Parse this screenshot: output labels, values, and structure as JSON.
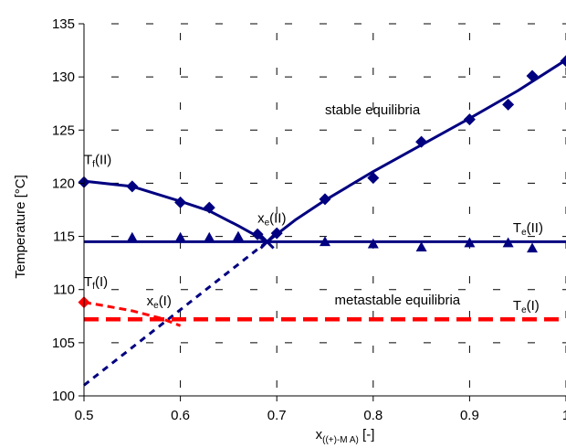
{
  "chart_data": {
    "type": "scatter",
    "title": "",
    "xlabel": {
      "main": "x",
      "sub": "((+)-M A)",
      "unit": " [-]"
    },
    "ylabel": "Temperature [°C]",
    "xlim": [
      0.5,
      1.0
    ],
    "ylim": [
      100,
      135
    ],
    "x_ticks": [
      "0.5",
      "0.6",
      "0.7",
      "0.8",
      "0.9",
      "1"
    ],
    "y_ticks": [
      "100",
      "105",
      "110",
      "115",
      "120",
      "125",
      "130",
      "135"
    ],
    "grid": "dashed",
    "colors": {
      "navy": "#000080",
      "red": "#ff0000"
    },
    "series": [
      {
        "style": "navy-diamond-markers",
        "x": [
          0.5,
          0.55,
          0.6,
          0.63,
          0.68,
          0.7,
          0.75,
          0.8,
          0.85,
          0.9,
          0.94,
          0.965,
          1.0
        ],
        "y": [
          120.1,
          119.7,
          118.2,
          117.7,
          115.2,
          115.3,
          118.5,
          120.5,
          123.9,
          126.0,
          127.4,
          130.1,
          131.5
        ]
      },
      {
        "style": "navy-triangle-markers",
        "x": [
          0.55,
          0.6,
          0.63,
          0.66,
          0.75,
          0.8,
          0.85,
          0.9,
          0.94,
          0.965
        ],
        "y": [
          114.9,
          114.9,
          114.9,
          115.0,
          114.5,
          114.3,
          114.0,
          114.4,
          114.4,
          113.9
        ]
      },
      {
        "style": "navy-x-marker",
        "x": [
          0.69
        ],
        "y": [
          114.5
        ]
      },
      {
        "style": "red-diamond-marker",
        "x": [
          0.5
        ],
        "y": [
          108.8
        ]
      },
      {
        "style": "navy-solid-curve",
        "x": [
          0.5,
          0.55,
          0.6,
          0.63,
          0.66,
          0.69,
          0.72,
          0.75,
          0.8,
          0.85,
          0.9,
          0.95,
          1.0
        ],
        "y": [
          120.2,
          119.7,
          118.3,
          117.4,
          116.0,
          114.5,
          116.6,
          118.4,
          121.1,
          123.6,
          126.1,
          128.7,
          131.6
        ]
      },
      {
        "style": "navy-solid-horizontal",
        "x": [
          0.5,
          1.0
        ],
        "y": [
          114.5,
          114.5
        ]
      },
      {
        "style": "navy-dashed-line",
        "x": [
          0.5,
          0.69
        ],
        "y": [
          101.0,
          114.5
        ]
      },
      {
        "style": "red-dashed-curve",
        "x": [
          0.5,
          0.52,
          0.55,
          0.58,
          0.6
        ],
        "y": [
          108.8,
          108.5,
          108.0,
          107.3,
          106.6
        ]
      },
      {
        "style": "red-dashed-horizontal",
        "x": [
          0.5,
          1.0
        ],
        "y": [
          107.2,
          107.2
        ]
      }
    ],
    "annotations": [
      {
        "id": "stable",
        "text": "stable equilibria",
        "x": 0.75,
        "y": 126.5
      },
      {
        "id": "metastable",
        "text": "metastable equilibria",
        "x": 0.76,
        "y": 108.6
      },
      {
        "id": "tf2",
        "main": "T",
        "sub": "f",
        "rest": "(II)",
        "x": 0.5,
        "y": 121.8
      },
      {
        "id": "tf1",
        "main": "T",
        "sub": "f",
        "rest": "(I)",
        "x": 0.5,
        "y": 110.3
      },
      {
        "id": "xe2",
        "main": "x",
        "sub": "e",
        "rest": "(II)",
        "x": 0.68,
        "y": 116.3
      },
      {
        "id": "xe1",
        "main": "x",
        "sub": "e",
        "rest": "(I)",
        "x": 0.565,
        "y": 108.5
      },
      {
        "id": "te2",
        "main": "T",
        "sub": "e",
        "rest": "(II)",
        "x": 0.945,
        "y": 115.4
      },
      {
        "id": "te1",
        "main": "T",
        "sub": "e",
        "rest": "(I)",
        "x": 0.945,
        "y": 108.1
      }
    ]
  }
}
